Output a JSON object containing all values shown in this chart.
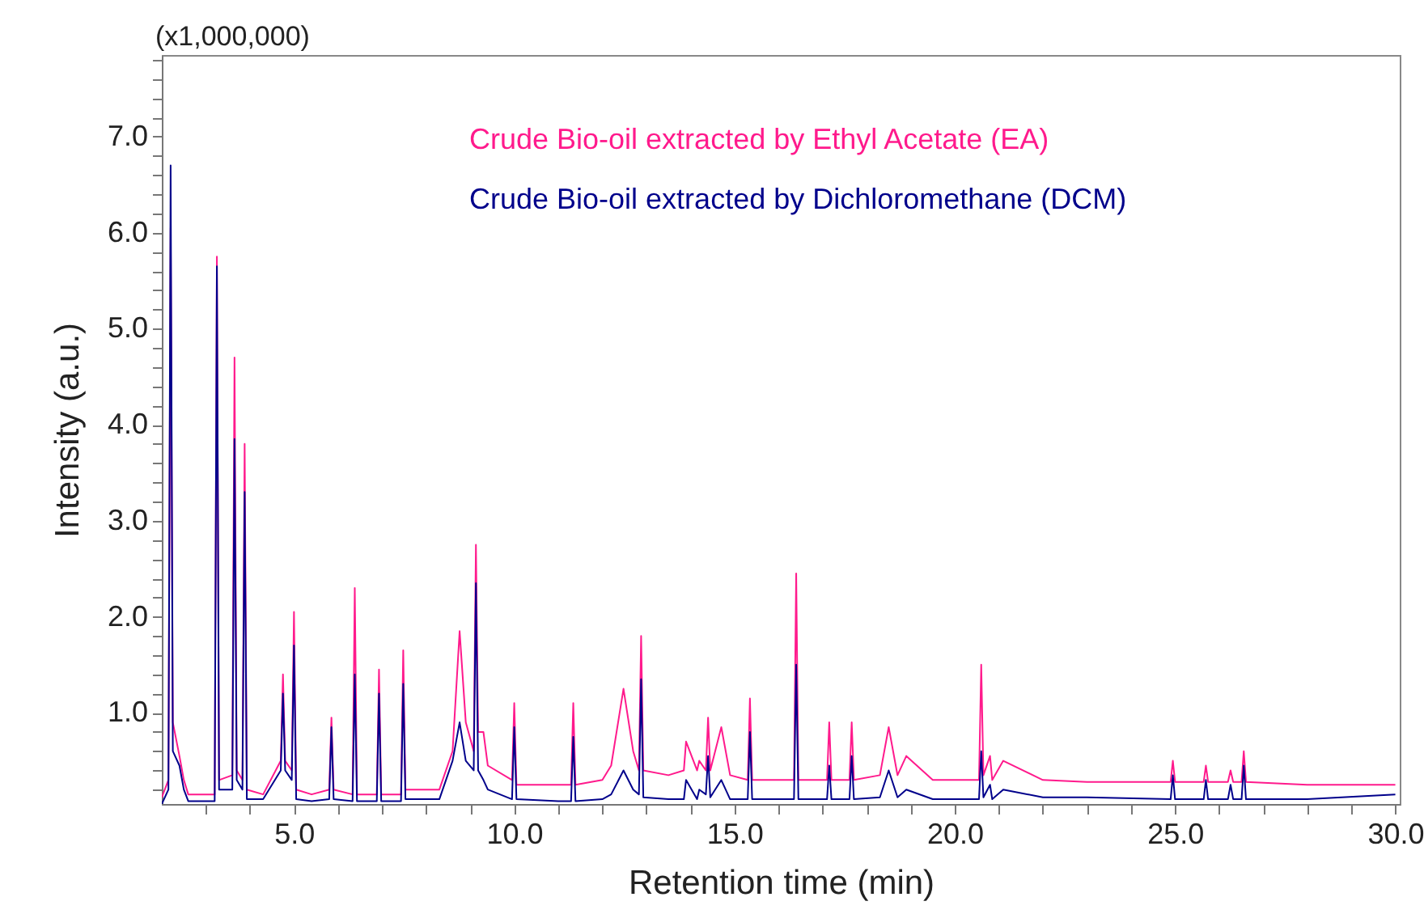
{
  "chart_data": {
    "type": "line",
    "xlabel": "Retention time (min)",
    "ylabel": "Intensity (a.u.)",
    "annotations": [
      "(x1,000,000)"
    ],
    "xlim": [
      2.0,
      30.1
    ],
    "ylim": [
      0.05,
      7.85
    ],
    "xticks": [
      {
        "value": 3,
        "label": null
      },
      {
        "value": 4,
        "label": null
      },
      {
        "value": 5,
        "label": "5.0"
      },
      {
        "value": 6,
        "label": null
      },
      {
        "value": 7,
        "label": null
      },
      {
        "value": 8,
        "label": null
      },
      {
        "value": 9,
        "label": null
      },
      {
        "value": 10,
        "label": "10.0"
      },
      {
        "value": 11,
        "label": null
      },
      {
        "value": 12,
        "label": null
      },
      {
        "value": 13,
        "label": null
      },
      {
        "value": 14,
        "label": null
      },
      {
        "value": 15,
        "label": "15.0"
      },
      {
        "value": 16,
        "label": null
      },
      {
        "value": 17,
        "label": null
      },
      {
        "value": 18,
        "label": null
      },
      {
        "value": 19,
        "label": null
      },
      {
        "value": 20,
        "label": "20.0"
      },
      {
        "value": 21,
        "label": null
      },
      {
        "value": 22,
        "label": null
      },
      {
        "value": 23,
        "label": null
      },
      {
        "value": 24,
        "label": null
      },
      {
        "value": 25,
        "label": "25.0"
      },
      {
        "value": 26,
        "label": null
      },
      {
        "value": 27,
        "label": null
      },
      {
        "value": 28,
        "label": null
      },
      {
        "value": 29,
        "label": null
      },
      {
        "value": 30,
        "label": "30.0"
      }
    ],
    "yticks": [
      {
        "value": 0.2,
        "label": null
      },
      {
        "value": 0.4,
        "label": null
      },
      {
        "value": 0.6,
        "label": null
      },
      {
        "value": 0.8,
        "label": null
      },
      {
        "value": 1,
        "label": "1.0"
      },
      {
        "value": 1.2,
        "label": null
      },
      {
        "value": 1.4,
        "label": null
      },
      {
        "value": 1.6,
        "label": null
      },
      {
        "value": 1.8,
        "label": null
      },
      {
        "value": 2,
        "label": "2.0"
      },
      {
        "value": 2.2,
        "label": null
      },
      {
        "value": 2.4,
        "label": null
      },
      {
        "value": 2.6,
        "label": null
      },
      {
        "value": 2.8,
        "label": null
      },
      {
        "value": 3,
        "label": "3.0"
      },
      {
        "value": 3.2,
        "label": null
      },
      {
        "value": 3.4,
        "label": null
      },
      {
        "value": 3.6,
        "label": null
      },
      {
        "value": 3.8,
        "label": null
      },
      {
        "value": 4,
        "label": "4.0"
      },
      {
        "value": 4.2,
        "label": null
      },
      {
        "value": 4.4,
        "label": null
      },
      {
        "value": 4.6,
        "label": null
      },
      {
        "value": 4.8,
        "label": null
      },
      {
        "value": 5,
        "label": "5.0"
      },
      {
        "value": 5.2,
        "label": null
      },
      {
        "value": 5.4,
        "label": null
      },
      {
        "value": 5.6,
        "label": null
      },
      {
        "value": 5.8,
        "label": null
      },
      {
        "value": 6,
        "label": "6.0"
      },
      {
        "value": 6.2,
        "label": null
      },
      {
        "value": 6.4,
        "label": null
      },
      {
        "value": 6.6,
        "label": null
      },
      {
        "value": 6.8,
        "label": null
      },
      {
        "value": 7,
        "label": "7.0"
      },
      {
        "value": 7.2,
        "label": null
      },
      {
        "value": 7.4,
        "label": null
      },
      {
        "value": 7.6,
        "label": null
      },
      {
        "value": 7.8,
        "label": null
      }
    ],
    "grid": false,
    "legend": "top",
    "marker": "none",
    "line_style": "solid",
    "x": [
      2.0,
      2.15,
      2.2,
      2.25,
      2.4,
      2.5,
      2.6,
      3.2,
      3.25,
      3.3,
      3.6,
      3.65,
      3.7,
      3.83,
      3.88,
      3.93,
      4.3,
      4.7,
      4.75,
      4.8,
      4.95,
      5.0,
      5.05,
      5.4,
      5.8,
      5.85,
      5.9,
      6.33,
      6.38,
      6.43,
      6.88,
      6.93,
      6.98,
      7.43,
      7.48,
      7.53,
      8.3,
      8.6,
      8.76,
      8.9,
      9.08,
      9.13,
      9.18,
      9.3,
      9.4,
      9.95,
      10.0,
      10.05,
      11.0,
      11.29,
      11.34,
      11.39,
      12.0,
      12.2,
      12.48,
      12.7,
      12.83,
      12.88,
      12.93,
      13.5,
      13.85,
      13.9,
      14.15,
      14.2,
      14.35,
      14.4,
      14.45,
      14.7,
      14.9,
      15.3,
      15.35,
      15.4,
      16.35,
      16.4,
      16.45,
      17.1,
      17.15,
      17.2,
      17.61,
      17.66,
      17.71,
      18.3,
      18.5,
      18.7,
      18.9,
      19.5,
      20.0,
      20.55,
      20.6,
      20.65,
      20.8,
      20.85,
      21.1,
      22.0,
      23.0,
      24.9,
      24.95,
      25.0,
      25.65,
      25.7,
      25.75,
      26.2,
      26.26,
      26.32,
      26.51,
      26.56,
      26.61,
      28.0,
      30.0
    ],
    "series": [
      {
        "name": "Crude Bio-oil extracted by Ethyl Acetate (EA)",
        "color": "#ff1a8c",
        "values": [
          0.12,
          0.3,
          6.05,
          0.9,
          0.55,
          0.3,
          0.15,
          0.15,
          5.75,
          0.3,
          0.35,
          4.7,
          0.4,
          0.3,
          3.8,
          0.2,
          0.15,
          0.5,
          1.4,
          0.5,
          0.4,
          2.05,
          0.2,
          0.15,
          0.2,
          0.95,
          0.2,
          0.15,
          2.3,
          0.15,
          0.15,
          1.45,
          0.15,
          0.15,
          1.65,
          0.2,
          0.2,
          0.6,
          1.85,
          0.9,
          0.6,
          2.75,
          0.8,
          0.8,
          0.45,
          0.3,
          1.1,
          0.25,
          0.25,
          0.25,
          1.1,
          0.25,
          0.3,
          0.45,
          1.25,
          0.6,
          0.4,
          1.8,
          0.4,
          0.35,
          0.4,
          0.7,
          0.4,
          0.5,
          0.4,
          0.95,
          0.4,
          0.85,
          0.35,
          0.3,
          1.15,
          0.3,
          0.3,
          2.45,
          0.3,
          0.3,
          0.9,
          0.3,
          0.3,
          0.9,
          0.3,
          0.35,
          0.85,
          0.35,
          0.55,
          0.3,
          0.3,
          0.3,
          1.5,
          0.35,
          0.55,
          0.3,
          0.5,
          0.3,
          0.28,
          0.28,
          0.5,
          0.28,
          0.28,
          0.45,
          0.28,
          0.28,
          0.4,
          0.28,
          0.28,
          0.6,
          0.28,
          0.25,
          0.25
        ]
      },
      {
        "name": "Crude Bio-oil extracted by Dichloromethane (DCM)",
        "color": "#00008b",
        "values": [
          0.05,
          0.2,
          6.7,
          0.6,
          0.45,
          0.2,
          0.08,
          0.08,
          5.65,
          0.2,
          0.2,
          3.85,
          0.3,
          0.2,
          3.3,
          0.1,
          0.1,
          0.4,
          1.2,
          0.4,
          0.3,
          1.7,
          0.1,
          0.08,
          0.1,
          0.85,
          0.1,
          0.08,
          1.4,
          0.08,
          0.08,
          1.2,
          0.08,
          0.08,
          1.3,
          0.1,
          0.1,
          0.5,
          0.9,
          0.5,
          0.4,
          2.35,
          0.4,
          0.3,
          0.2,
          0.1,
          0.85,
          0.1,
          0.08,
          0.08,
          0.75,
          0.08,
          0.1,
          0.15,
          0.4,
          0.2,
          0.15,
          1.35,
          0.12,
          0.1,
          0.1,
          0.3,
          0.1,
          0.2,
          0.15,
          0.55,
          0.12,
          0.3,
          0.1,
          0.1,
          0.8,
          0.1,
          0.1,
          1.5,
          0.1,
          0.1,
          0.45,
          0.1,
          0.1,
          0.55,
          0.1,
          0.12,
          0.4,
          0.12,
          0.2,
          0.1,
          0.1,
          0.1,
          0.6,
          0.12,
          0.25,
          0.1,
          0.2,
          0.12,
          0.12,
          0.1,
          0.35,
          0.1,
          0.1,
          0.3,
          0.1,
          0.1,
          0.25,
          0.1,
          0.1,
          0.45,
          0.1,
          0.1,
          0.15
        ]
      }
    ]
  }
}
